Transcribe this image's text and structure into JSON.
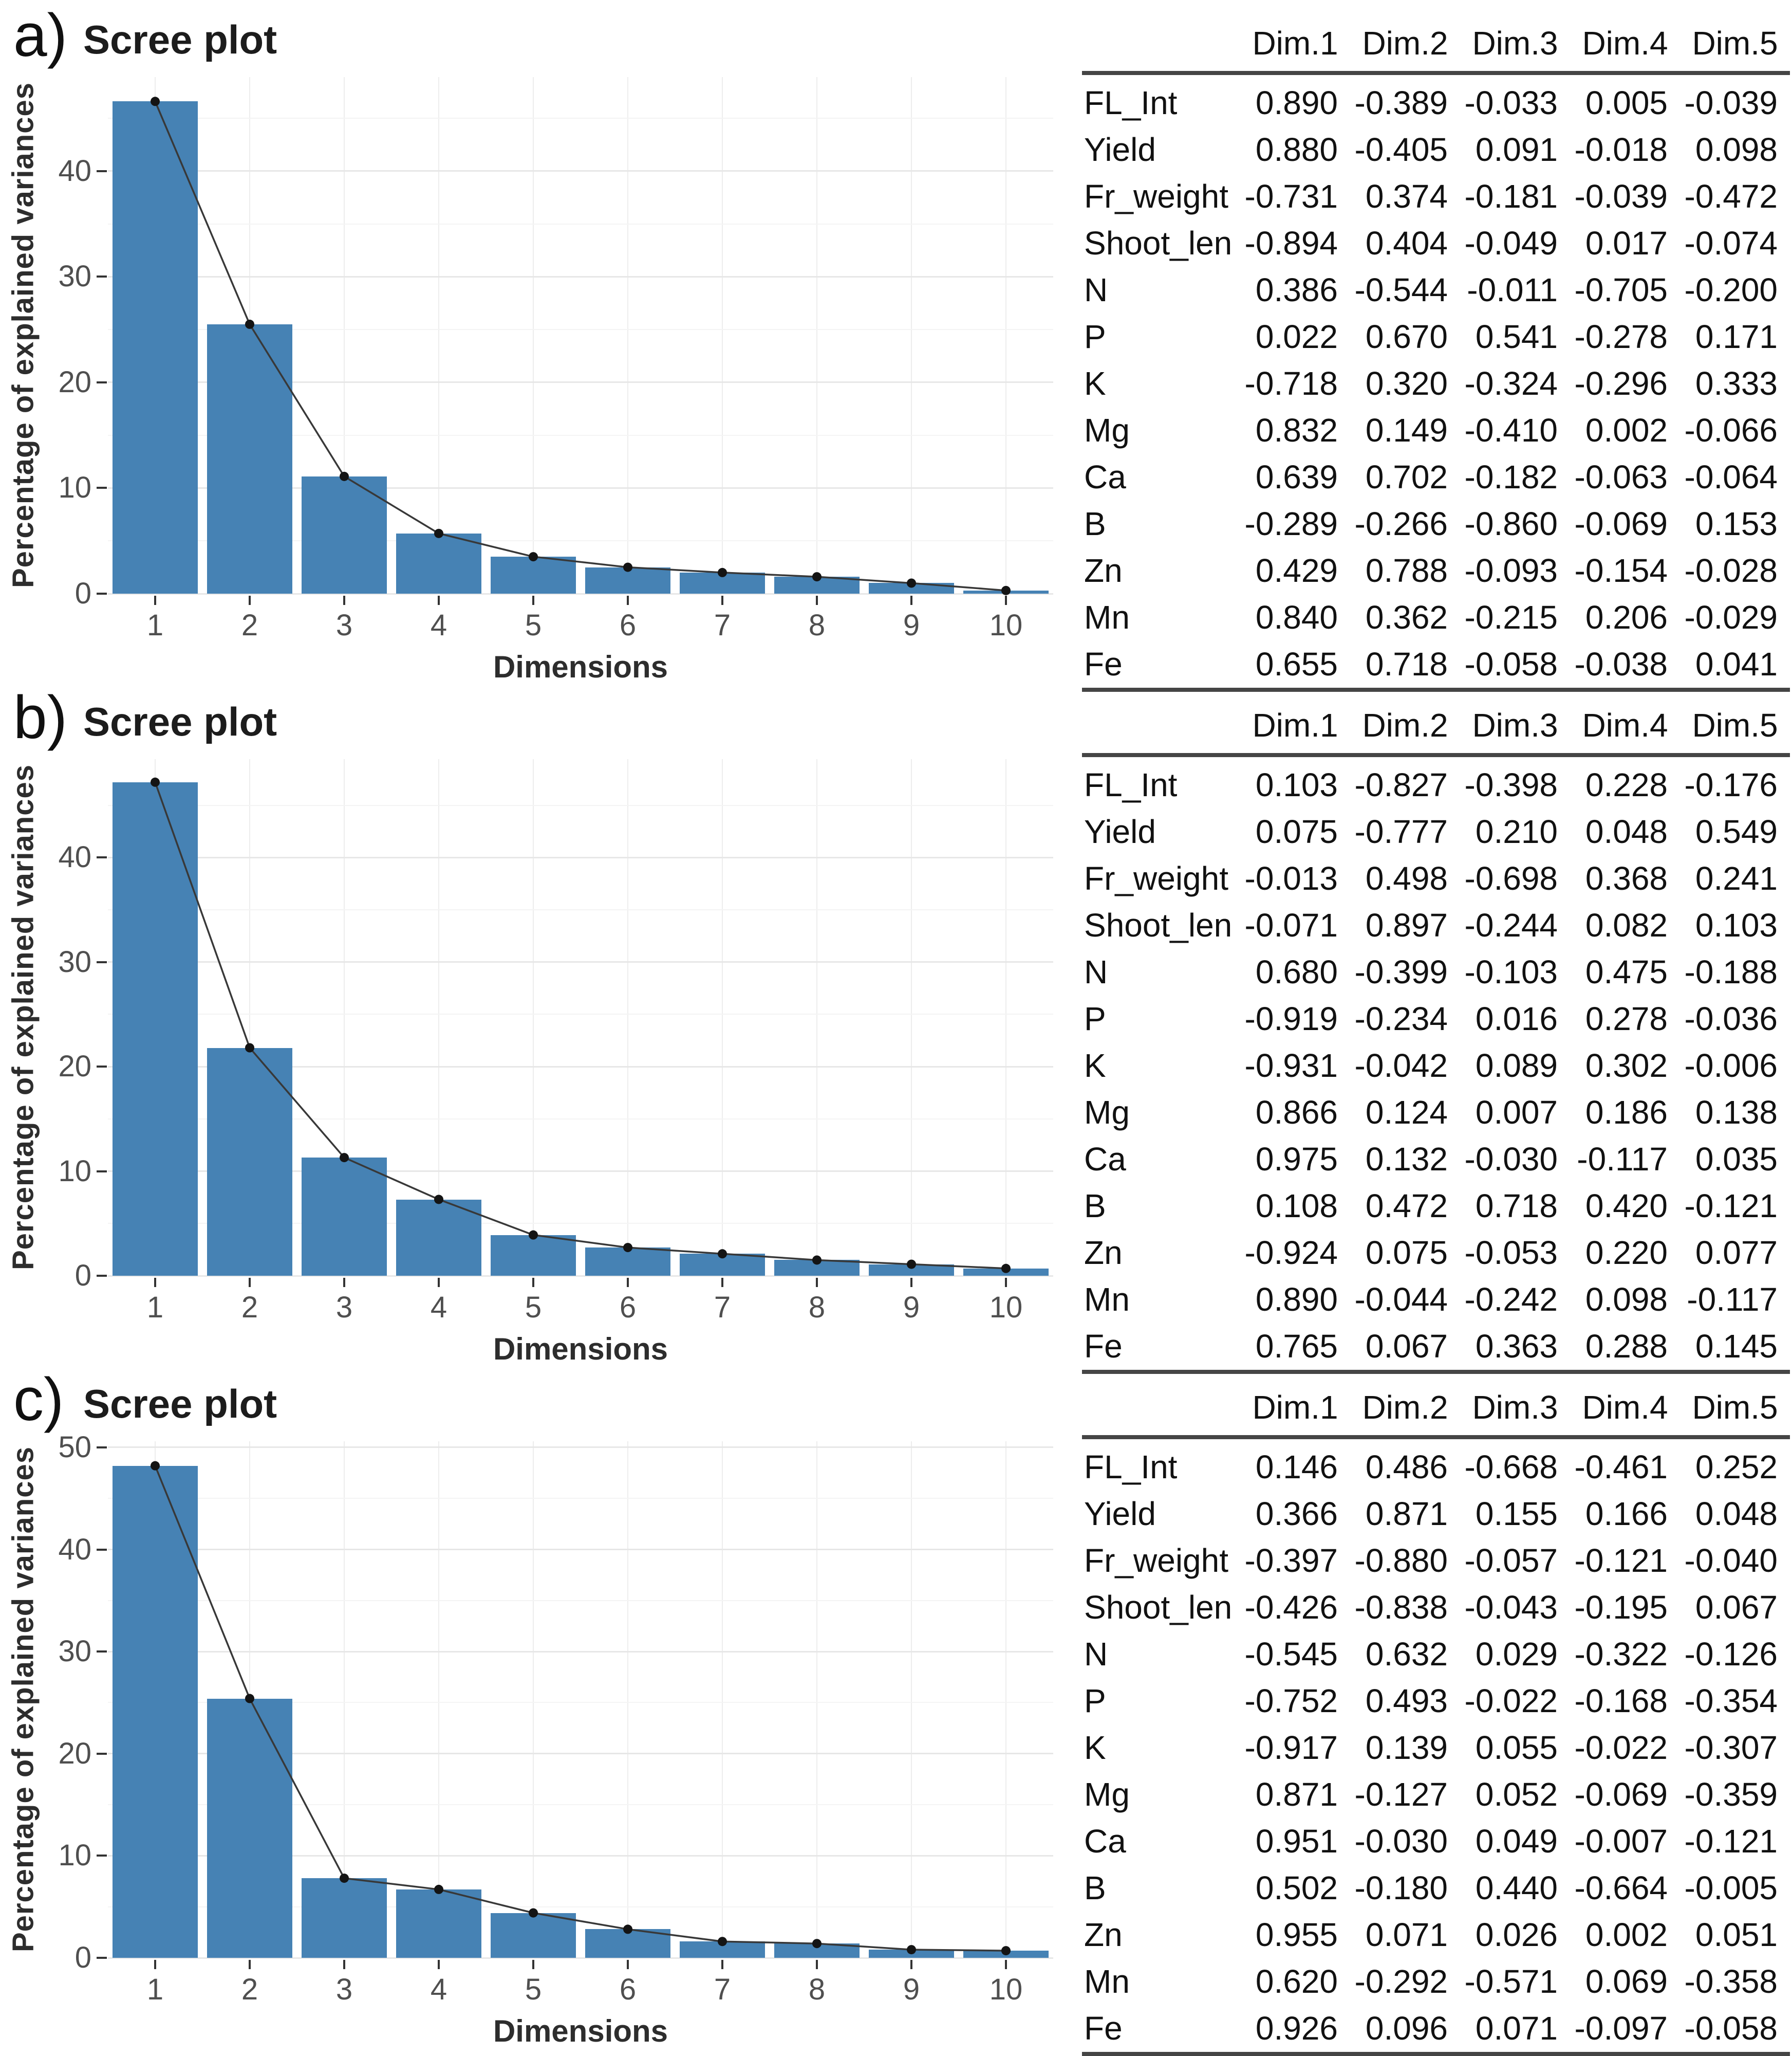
{
  "chart_data": [
    {
      "type": "bar",
      "panel": "a",
      "panel_label": "a)",
      "title": "Scree plot",
      "xlabel": "Dimensions",
      "ylabel": "Percentage of explained variances",
      "categories": [
        1,
        2,
        3,
        4,
        5,
        6,
        7,
        8,
        9,
        10
      ],
      "values": [
        46.6,
        25.5,
        11.1,
        5.7,
        3.5,
        2.5,
        2.0,
        1.6,
        1.0,
        0.3
      ],
      "line_overlay": true,
      "yticks": [
        0,
        10,
        20,
        30,
        40
      ],
      "minor_yticks": [
        5,
        15,
        25,
        35,
        45
      ],
      "ylim": [
        0,
        48.9
      ],
      "grid": true,
      "legend": "none",
      "bar_color": "#4682B4",
      "line_color": "#383838",
      "dot_color": "#141414"
    },
    {
      "type": "table",
      "panel": "a",
      "columns": [
        "",
        "Dim.1",
        "Dim.2",
        "Dim.3",
        "Dim.4",
        "Dim.5"
      ],
      "rows": [
        [
          "FL_Int",
          "0.890",
          "-0.389",
          "-0.033",
          "0.005",
          "-0.039"
        ],
        [
          "Yield",
          "0.880",
          "-0.405",
          "0.091",
          "-0.018",
          "0.098"
        ],
        [
          "Fr_weight",
          "-0.731",
          "0.374",
          "-0.181",
          "-0.039",
          "-0.472"
        ],
        [
          "Shoot_len",
          "-0.894",
          "0.404",
          "-0.049",
          "0.017",
          "-0.074"
        ],
        [
          "N",
          "0.386",
          "-0.544",
          "-0.011",
          "-0.705",
          "-0.200"
        ],
        [
          "P",
          "0.022",
          "0.670",
          "0.541",
          "-0.278",
          "0.171"
        ],
        [
          "K",
          "-0.718",
          "0.320",
          "-0.324",
          "-0.296",
          "0.333"
        ],
        [
          "Mg",
          "0.832",
          "0.149",
          "-0.410",
          "0.002",
          "-0.066"
        ],
        [
          "Ca",
          "0.639",
          "0.702",
          "-0.182",
          "-0.063",
          "-0.064"
        ],
        [
          "B",
          "-0.289",
          "-0.266",
          "-0.860",
          "-0.069",
          "0.153"
        ],
        [
          "Zn",
          "0.429",
          "0.788",
          "-0.093",
          "-0.154",
          "-0.028"
        ],
        [
          "Mn",
          "0.840",
          "0.362",
          "-0.215",
          "0.206",
          "-0.029"
        ],
        [
          "Fe",
          "0.655",
          "0.718",
          "-0.058",
          "-0.038",
          "0.041"
        ]
      ]
    },
    {
      "type": "bar",
      "panel": "b",
      "panel_label": "b)",
      "title": "Scree plot",
      "xlabel": "Dimensions",
      "ylabel": "Percentage of explained variances",
      "categories": [
        1,
        2,
        3,
        4,
        5,
        6,
        7,
        8,
        9,
        10
      ],
      "values": [
        47.2,
        21.8,
        11.3,
        7.3,
        3.9,
        2.7,
        2.1,
        1.5,
        1.1,
        0.7
      ],
      "line_overlay": true,
      "yticks": [
        0,
        10,
        20,
        30,
        40
      ],
      "minor_yticks": [
        5,
        15,
        25,
        35,
        45
      ],
      "ylim": [
        0,
        49.4
      ],
      "grid": true,
      "legend": "none",
      "bar_color": "#4682B4",
      "line_color": "#383838",
      "dot_color": "#141414"
    },
    {
      "type": "table",
      "panel": "b",
      "columns": [
        "",
        "Dim.1",
        "Dim.2",
        "Dim.3",
        "Dim.4",
        "Dim.5"
      ],
      "rows": [
        [
          "FL_Int",
          "0.103",
          "-0.827",
          "-0.398",
          "0.228",
          "-0.176"
        ],
        [
          "Yield",
          "0.075",
          "-0.777",
          "0.210",
          "0.048",
          "0.549"
        ],
        [
          "Fr_weight",
          "-0.013",
          "0.498",
          "-0.698",
          "0.368",
          "0.241"
        ],
        [
          "Shoot_len",
          "-0.071",
          "0.897",
          "-0.244",
          "0.082",
          "0.103"
        ],
        [
          "N",
          "0.680",
          "-0.399",
          "-0.103",
          "0.475",
          "-0.188"
        ],
        [
          "P",
          "-0.919",
          "-0.234",
          "0.016",
          "0.278",
          "-0.036"
        ],
        [
          "K",
          "-0.931",
          "-0.042",
          "0.089",
          "0.302",
          "-0.006"
        ],
        [
          "Mg",
          "0.866",
          "0.124",
          "0.007",
          "0.186",
          "0.138"
        ],
        [
          "Ca",
          "0.975",
          "0.132",
          "-0.030",
          "-0.117",
          "0.035"
        ],
        [
          "B",
          "0.108",
          "0.472",
          "0.718",
          "0.420",
          "-0.121"
        ],
        [
          "Zn",
          "-0.924",
          "0.075",
          "-0.053",
          "0.220",
          "0.077"
        ],
        [
          "Mn",
          "0.890",
          "-0.044",
          "-0.242",
          "0.098",
          "-0.117"
        ],
        [
          "Fe",
          "0.765",
          "0.067",
          "0.363",
          "0.288",
          "0.145"
        ]
      ]
    },
    {
      "type": "bar",
      "panel": "c",
      "panel_label": "c)",
      "title": "Scree plot",
      "xlabel": "Dimensions",
      "ylabel": "Percentage of explained variances",
      "categories": [
        1,
        2,
        3,
        4,
        5,
        6,
        7,
        8,
        9,
        10
      ],
      "values": [
        48.2,
        25.4,
        7.8,
        6.7,
        4.4,
        2.8,
        1.6,
        1.4,
        0.8,
        0.7
      ],
      "line_overlay": true,
      "yticks": [
        0,
        10,
        20,
        30,
        40,
        50
      ],
      "minor_yticks": [
        5,
        15,
        25,
        35,
        45
      ],
      "ylim": [
        0,
        50.6
      ],
      "grid": true,
      "legend": "none",
      "bar_color": "#4682B4",
      "line_color": "#383838",
      "dot_color": "#141414"
    },
    {
      "type": "table",
      "panel": "c",
      "columns": [
        "",
        "Dim.1",
        "Dim.2",
        "Dim.3",
        "Dim.4",
        "Dim.5"
      ],
      "rows": [
        [
          "FL_Int",
          "0.146",
          "0.486",
          "-0.668",
          "-0.461",
          "0.252"
        ],
        [
          "Yield",
          "0.366",
          "0.871",
          "0.155",
          "0.166",
          "0.048"
        ],
        [
          "Fr_weight",
          "-0.397",
          "-0.880",
          "-0.057",
          "-0.121",
          "-0.040"
        ],
        [
          "Shoot_len",
          "-0.426",
          "-0.838",
          "-0.043",
          "-0.195",
          "0.067"
        ],
        [
          "N",
          "-0.545",
          "0.632",
          "0.029",
          "-0.322",
          "-0.126"
        ],
        [
          "P",
          "-0.752",
          "0.493",
          "-0.022",
          "-0.168",
          "-0.354"
        ],
        [
          "K",
          "-0.917",
          "0.139",
          "0.055",
          "-0.022",
          "-0.307"
        ],
        [
          "Mg",
          "0.871",
          "-0.127",
          "0.052",
          "-0.069",
          "-0.359"
        ],
        [
          "Ca",
          "0.951",
          "-0.030",
          "0.049",
          "-0.007",
          "-0.121"
        ],
        [
          "B",
          "0.502",
          "-0.180",
          "0.440",
          "-0.664",
          "-0.005"
        ],
        [
          "Zn",
          "0.955",
          "0.071",
          "0.026",
          "0.002",
          "0.051"
        ],
        [
          "Mn",
          "0.620",
          "-0.292",
          "-0.571",
          "0.069",
          "-0.358"
        ],
        [
          "Fe",
          "0.926",
          "0.096",
          "0.071",
          "-0.097",
          "-0.058"
        ]
      ]
    }
  ]
}
